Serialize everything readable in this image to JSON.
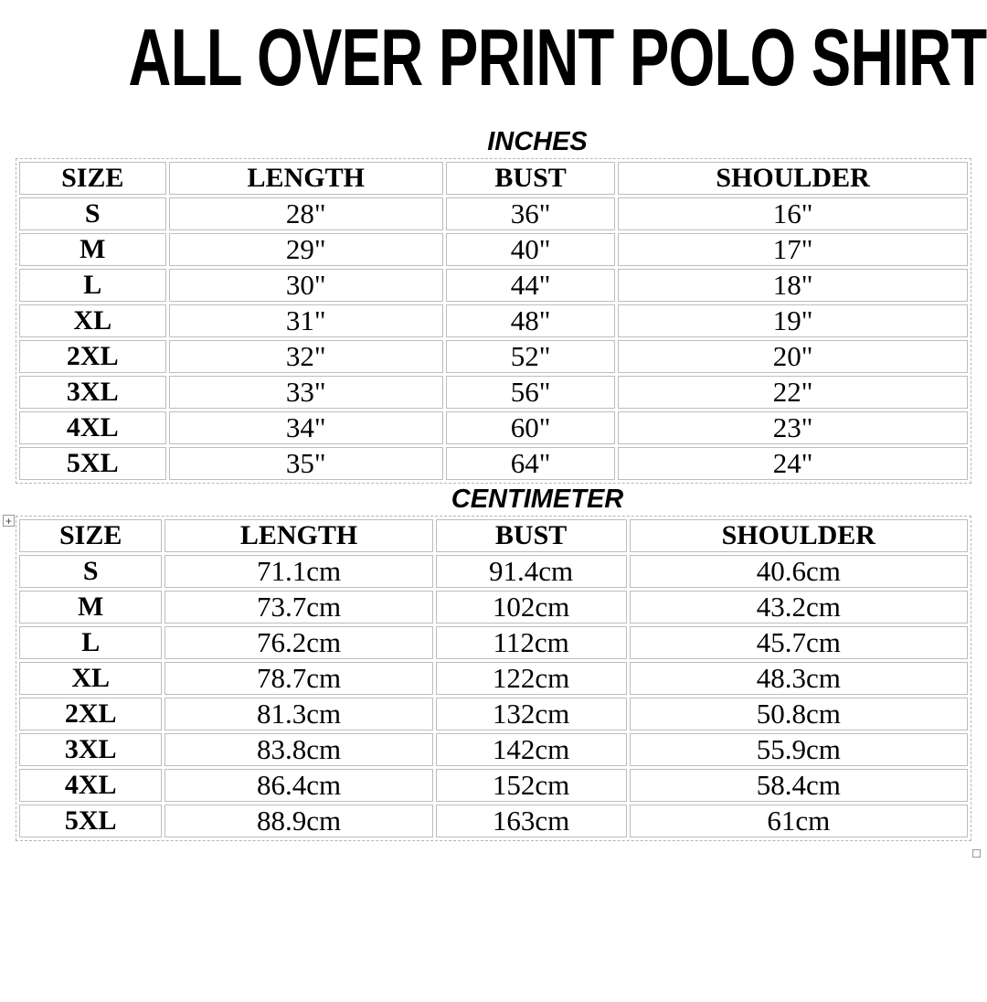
{
  "page": {
    "title": "ALL OVER PRINT POLO SHIRTS"
  },
  "tables": {
    "inches": {
      "unit_label": "INCHES",
      "headers": [
        "SIZE",
        "LENGTH",
        "BUST",
        "SHOULDER"
      ],
      "rows": [
        [
          "S",
          "28\"",
          "36\"",
          "16\""
        ],
        [
          "M",
          "29\"",
          "40\"",
          "17\""
        ],
        [
          "L",
          "30\"",
          "44\"",
          "18\""
        ],
        [
          "XL",
          "31\"",
          "48\"",
          "19\""
        ],
        [
          "2XL",
          "32\"",
          "52\"",
          "20\""
        ],
        [
          "3XL",
          "33\"",
          "56\"",
          "22\""
        ],
        [
          "4XL",
          "34\"",
          "60\"",
          "23\""
        ],
        [
          "5XL",
          "35\"",
          "64\"",
          "24\""
        ]
      ]
    },
    "centimeter": {
      "unit_label": "CENTIMETER",
      "headers": [
        "SIZE",
        "LENGTH",
        "BUST",
        "SHOULDER"
      ],
      "rows": [
        [
          "S",
          "71.1cm",
          "91.4cm",
          "40.6cm"
        ],
        [
          "M",
          "73.7cm",
          "102cm",
          "43.2cm"
        ],
        [
          "L",
          "76.2cm",
          "112cm",
          "45.7cm"
        ],
        [
          "XL",
          "78.7cm",
          "122cm",
          "48.3cm"
        ],
        [
          "2XL",
          "81.3cm",
          "132cm",
          "50.8cm"
        ],
        [
          "3XL",
          "83.8cm",
          "142cm",
          "55.9cm"
        ],
        [
          "4XL",
          "86.4cm",
          "152cm",
          "58.4cm"
        ],
        [
          "5XL",
          "88.9cm",
          "163cm",
          "61cm"
        ]
      ]
    }
  },
  "icons": {
    "table_move_handle": "+"
  },
  "colors": {
    "text": "#000000",
    "cell_border": "#bdbdbd",
    "table_outline": "#b5b5b5"
  }
}
